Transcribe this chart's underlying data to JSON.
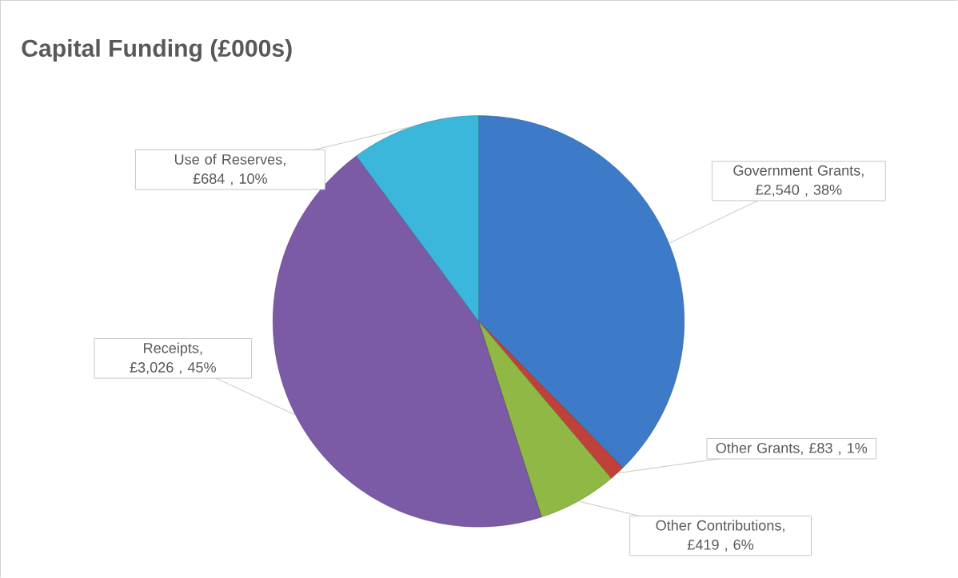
{
  "chart_data": {
    "type": "pie",
    "title": "Capital Funding (£000s)",
    "categories": [
      "Government Grants",
      "Other Grants",
      "Other Contributions",
      "Receipts",
      "Use of Reserves"
    ],
    "values": [
      2540,
      83,
      419,
      3026,
      684
    ],
    "value_labels": [
      ", £2,540 , 38%",
      ", £83 , 1%",
      ", £419 , 6%",
      ", £3,026 , 45%",
      ", £684 , 10%"
    ],
    "colors": [
      "#3d7bc8",
      "#c0403a",
      "#8fb944",
      "#7b5aa6",
      "#3bb7dc"
    ]
  }
}
